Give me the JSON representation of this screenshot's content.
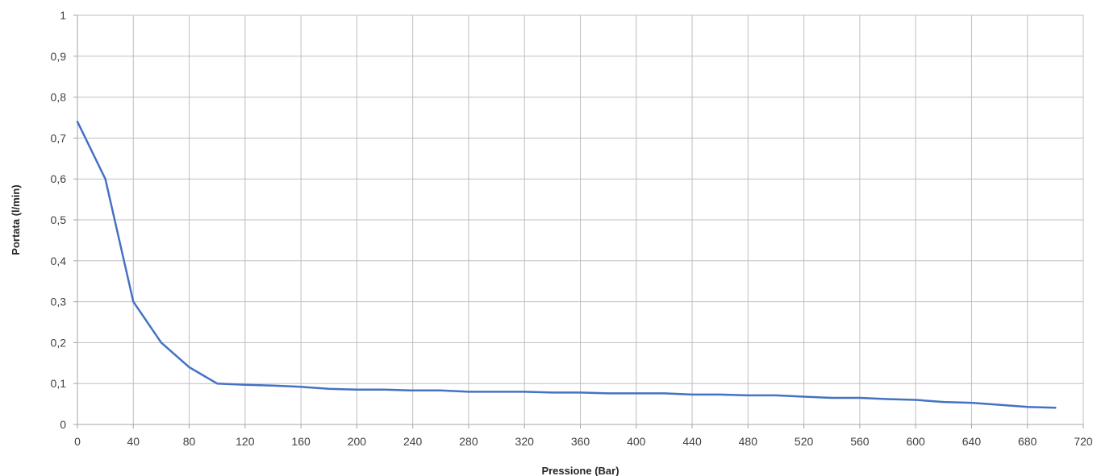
{
  "chart_data": {
    "type": "line",
    "title": "",
    "xlabel": "Pressione (Bar)",
    "ylabel": "Portata (l/min)",
    "xlim": [
      0,
      720
    ],
    "ylim": [
      0,
      1
    ],
    "x_ticks": [
      0,
      40,
      80,
      120,
      160,
      200,
      240,
      280,
      320,
      360,
      400,
      440,
      480,
      520,
      560,
      600,
      640,
      680,
      720
    ],
    "y_ticks": [
      "0",
      "0,1",
      "0,2",
      "0,3",
      "0,4",
      "0,5",
      "0,6",
      "0,7",
      "0,8",
      "0,9",
      "1"
    ],
    "y_tick_values": [
      0,
      0.1,
      0.2,
      0.3,
      0.4,
      0.5,
      0.6,
      0.7,
      0.8,
      0.9,
      1
    ],
    "grid": true,
    "legend": "none",
    "series": [
      {
        "color": "#4472c4",
        "x": [
          0,
          20,
          40,
          60,
          80,
          100,
          120,
          140,
          160,
          180,
          200,
          220,
          240,
          260,
          280,
          300,
          320,
          340,
          360,
          380,
          400,
          420,
          440,
          460,
          480,
          500,
          520,
          540,
          560,
          580,
          600,
          620,
          640,
          660,
          680,
          700
        ],
        "y": [
          0.74,
          0.6,
          0.3,
          0.2,
          0.14,
          0.1,
          0.097,
          0.095,
          0.092,
          0.087,
          0.085,
          0.085,
          0.083,
          0.083,
          0.08,
          0.08,
          0.08,
          0.078,
          0.078,
          0.076,
          0.076,
          0.076,
          0.073,
          0.073,
          0.071,
          0.071,
          0.068,
          0.065,
          0.065,
          0.062,
          0.06,
          0.055,
          0.053,
          0.048,
          0.043,
          0.041
        ]
      }
    ]
  }
}
